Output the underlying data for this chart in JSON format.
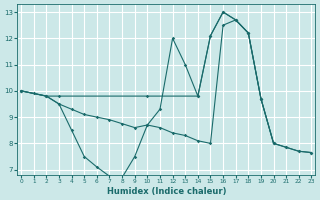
{
  "xlabel": "Humidex (Indice chaleur)",
  "bg_color": "#cce8e8",
  "line_color": "#1a6b6b",
  "grid_color": "#ffffff",
  "xlim": [
    -0.3,
    23.3
  ],
  "ylim": [
    6.8,
    13.3
  ],
  "xticks": [
    0,
    1,
    2,
    3,
    4,
    5,
    6,
    7,
    8,
    9,
    10,
    11,
    12,
    13,
    14,
    15,
    16,
    17,
    18,
    19,
    20,
    21,
    22,
    23
  ],
  "yticks": [
    7,
    8,
    9,
    10,
    11,
    12,
    13
  ],
  "line1_x": [
    0,
    1,
    2,
    3,
    4,
    5,
    6,
    7,
    8,
    9,
    10,
    11,
    12,
    13,
    14,
    15,
    16,
    17,
    18,
    19,
    20,
    21,
    22,
    23
  ],
  "line1_y": [
    10,
    9.9,
    9.8,
    9.5,
    8.5,
    7.5,
    7.1,
    6.75,
    6.7,
    7.5,
    8.7,
    9.3,
    12.0,
    11.0,
    9.8,
    12.1,
    13.0,
    12.7,
    12.2,
    9.7,
    8.0,
    7.85,
    7.7,
    7.65
  ],
  "line2_x": [
    0,
    2,
    3,
    4,
    5,
    6,
    7,
    8,
    9,
    10,
    11,
    12,
    13,
    14,
    15,
    16,
    17,
    18,
    19,
    20,
    21,
    22,
    23
  ],
  "line2_y": [
    10,
    9.8,
    9.5,
    9.3,
    9.1,
    9.0,
    8.9,
    8.75,
    8.6,
    8.7,
    8.6,
    8.4,
    8.3,
    8.1,
    8.0,
    12.5,
    12.7,
    12.2,
    9.7,
    8.0,
    7.85,
    7.7,
    7.65
  ],
  "line3_x": [
    0,
    2,
    3,
    10,
    14,
    15,
    16,
    17,
    18,
    19,
    20
  ],
  "line3_y": [
    10,
    9.8,
    9.8,
    9.8,
    9.8,
    12.1,
    13.0,
    12.7,
    12.2,
    9.7,
    8.0
  ]
}
